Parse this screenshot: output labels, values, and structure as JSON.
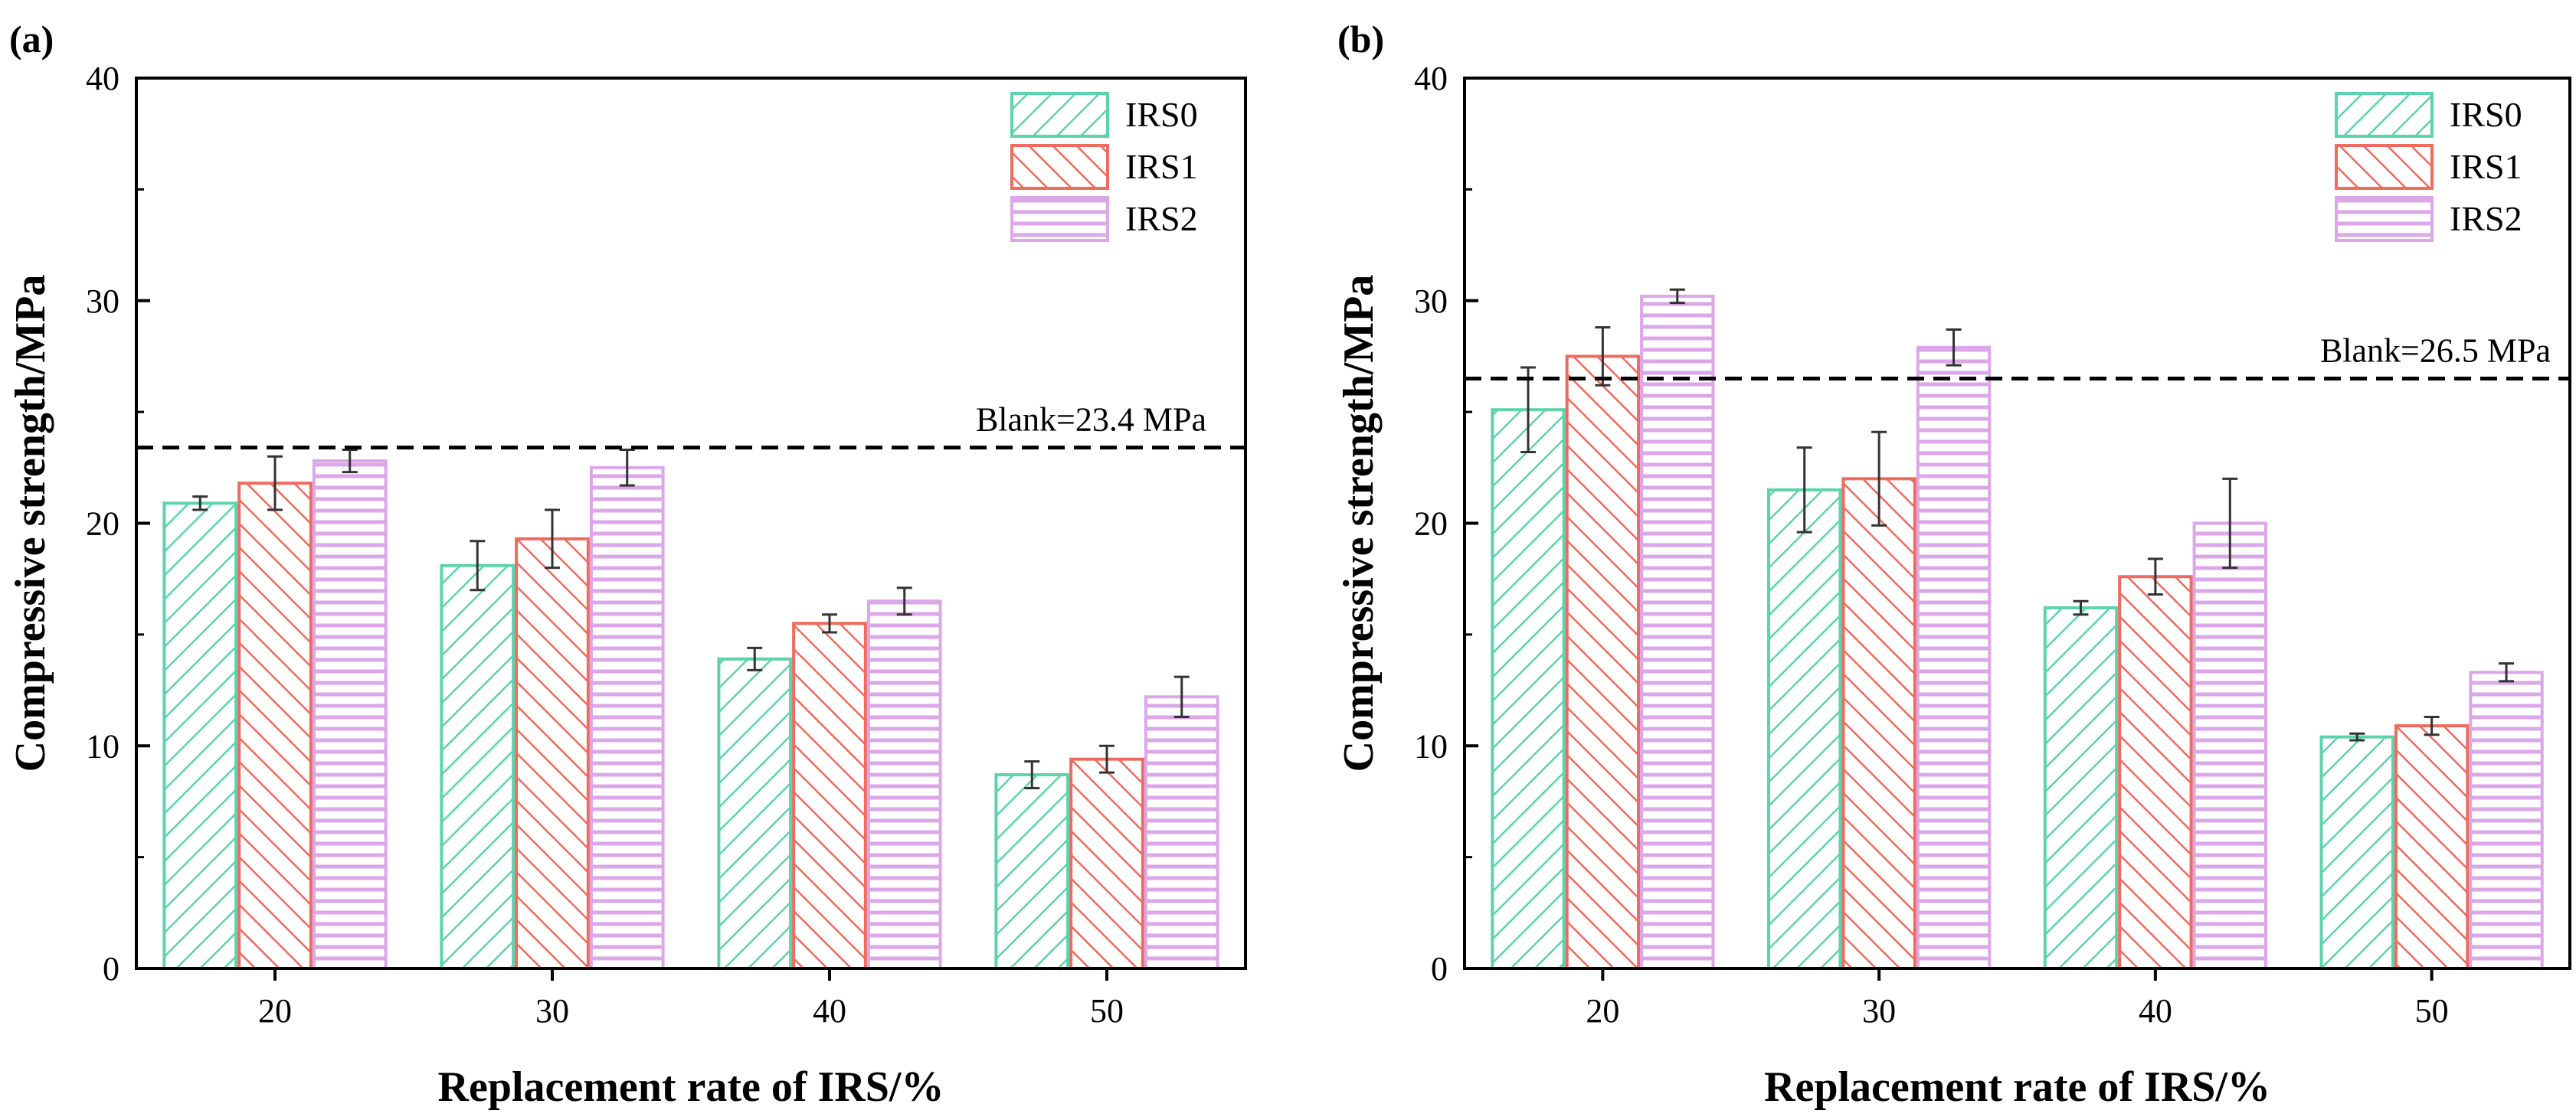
{
  "chart_data": [
    {
      "type": "bar",
      "panel_label": "(a)",
      "categories": [
        "20",
        "30",
        "40",
        "50"
      ],
      "series": [
        {
          "name": "IRS0",
          "values": [
            20.9,
            18.1,
            13.9,
            8.7
          ],
          "errors": [
            0.3,
            1.1,
            0.5,
            0.6
          ],
          "color": "#5dd3ad",
          "pattern": "diag-right"
        },
        {
          "name": "IRS1",
          "values": [
            21.8,
            19.3,
            15.5,
            9.4
          ],
          "errors": [
            1.2,
            1.3,
            0.4,
            0.6
          ],
          "color": "#ee6b5e",
          "pattern": "diag-left"
        },
        {
          "name": "IRS2",
          "values": [
            22.8,
            22.5,
            16.5,
            12.2
          ],
          "errors": [
            0.5,
            0.8,
            0.6,
            0.9
          ],
          "color": "#dca7e8",
          "pattern": "horizontal"
        }
      ],
      "reference_line": {
        "value": 23.4,
        "label": "Blank=23.4 MPa"
      },
      "ylim": [
        0,
        40
      ],
      "yticks": [
        "0",
        "10",
        "20",
        "30",
        "40"
      ],
      "xlabel": "Replacement rate of IRS/%",
      "ylabel": "Compressive strength/MPa",
      "legend_position": "top-right"
    },
    {
      "type": "bar",
      "panel_label": "(b)",
      "categories": [
        "20",
        "30",
        "40",
        "50"
      ],
      "series": [
        {
          "name": "IRS0",
          "values": [
            25.1,
            21.5,
            16.2,
            10.4
          ],
          "errors": [
            1.9,
            1.9,
            0.3,
            0.15
          ],
          "color": "#5dd3ad",
          "pattern": "diag-right"
        },
        {
          "name": "IRS1",
          "values": [
            27.5,
            22.0,
            17.6,
            10.9
          ],
          "errors": [
            1.3,
            2.1,
            0.8,
            0.4
          ],
          "color": "#ee6b5e",
          "pattern": "diag-left"
        },
        {
          "name": "IRS2",
          "values": [
            30.2,
            27.9,
            20.0,
            13.3
          ],
          "errors": [
            0.3,
            0.8,
            2.0,
            0.4
          ],
          "color": "#dca7e8",
          "pattern": "horizontal"
        }
      ],
      "reference_line": {
        "value": 26.5,
        "label": "Blank=26.5 MPa"
      },
      "ylim": [
        0,
        40
      ],
      "yticks": [
        "0",
        "10",
        "20",
        "30",
        "40"
      ],
      "xlabel": "Replacement rate of IRS/%",
      "ylabel": "Compressive strength/MPa",
      "legend_position": "top-right"
    }
  ]
}
